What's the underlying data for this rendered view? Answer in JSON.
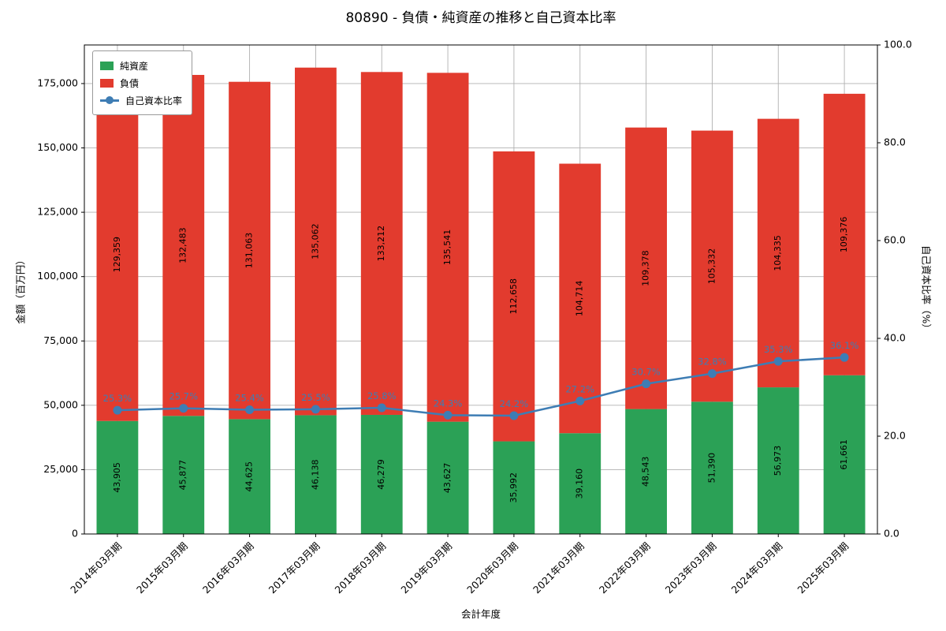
{
  "title": "80890 - 負債・純資産の推移と自己資本比率",
  "chart_data": {
    "type": "bar",
    "stacked": true,
    "title": "80890 - 負債・純資産の推移と自己資本比率",
    "xlabel": "会計年度",
    "ylabel_left": "金額（百万円）",
    "ylabel_right": "自己資本比率（%）",
    "categories": [
      "2014年03月期",
      "2015年03月期",
      "2016年03月期",
      "2017年03月期",
      "2018年03月期",
      "2019年03月期",
      "2020年03月期",
      "2021年03月期",
      "2022年03月期",
      "2023年03月期",
      "2024年03月期",
      "2025年03月期"
    ],
    "series": [
      {
        "name": "純資産",
        "color": "#2ba156",
        "values": [
          43905,
          45877,
          44625,
          46138,
          46279,
          43627,
          35992,
          39160,
          48543,
          51390,
          56973,
          61661
        ]
      },
      {
        "name": "負債",
        "color": "#e23b2e",
        "values": [
          129359,
          132483,
          131063,
          135062,
          133212,
          135541,
          112658,
          104714,
          109378,
          105332,
          104335,
          109376
        ]
      }
    ],
    "line_series": {
      "name": "自己資本比率",
      "color": "#3e7db4",
      "unit": "%",
      "values": [
        25.3,
        25.7,
        25.4,
        25.5,
        25.8,
        24.3,
        24.2,
        27.2,
        30.7,
        32.8,
        35.3,
        36.1
      ]
    },
    "ylim_left": [
      0,
      190000
    ],
    "yticks_left": [
      0,
      25000,
      50000,
      75000,
      100000,
      125000,
      150000,
      175000
    ],
    "ylim_right": [
      0,
      100
    ],
    "yticks_right": [
      0,
      20,
      40,
      60,
      80,
      100
    ],
    "grid": true,
    "grid_color": "#b0b0b0",
    "legend_position": "upper-left"
  }
}
